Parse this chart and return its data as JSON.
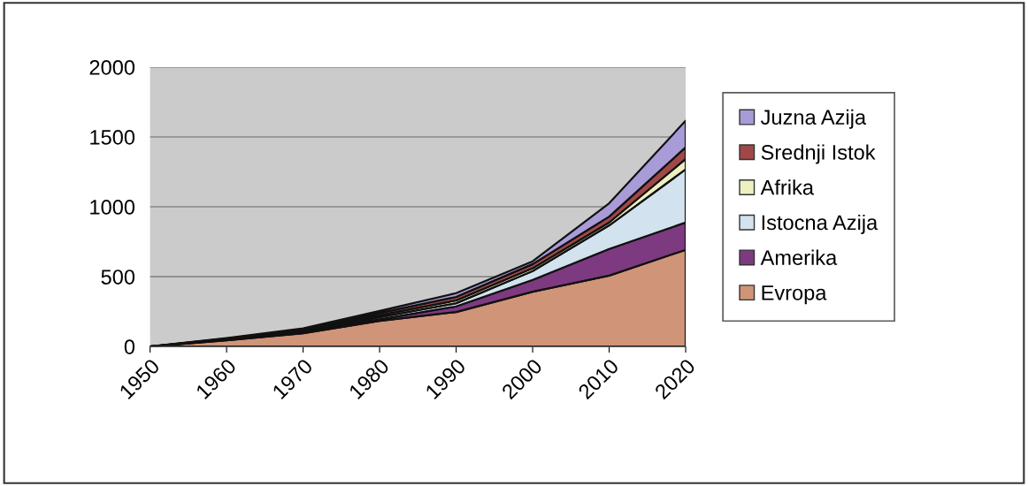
{
  "chart_data": {
    "type": "area",
    "stacked": true,
    "x": [
      1950,
      1960,
      1970,
      1980,
      1990,
      2000,
      2010,
      2020
    ],
    "series": [
      {
        "name": "Evropa",
        "color": "#d09478",
        "values": [
          0,
          45,
          95,
          184,
          247,
          392,
          508,
          692
        ]
      },
      {
        "name": "Amerika",
        "color": "#7e3a80",
        "values": [
          0,
          3,
          5,
          11,
          40,
          85,
          190,
          196
        ]
      },
      {
        "name": "Istocna Azija",
        "color": "#d2e2ee",
        "values": [
          0,
          3,
          8,
          15,
          23,
          63,
          169,
          380
        ]
      },
      {
        "name": "Afrika",
        "color": "#eef0c2",
        "values": [
          0,
          3,
          7,
          15,
          20,
          20,
          21,
          74
        ]
      },
      {
        "name": "Srednji Istok",
        "color": "#a04848",
        "values": [
          0,
          3,
          7,
          15,
          25,
          30,
          42,
          84
        ]
      },
      {
        "name": "Juzna Azija",
        "color": "#a99ad8",
        "values": [
          0,
          3,
          8,
          15,
          27,
          20,
          95,
          190
        ]
      }
    ],
    "xlim": [
      1950,
      2020
    ],
    "xticks": [
      1950,
      1960,
      1970,
      1980,
      1990,
      2000,
      2010,
      2020
    ],
    "ylim": [
      0,
      2000
    ],
    "yticks": [
      0,
      500,
      1000,
      1500,
      2000
    ],
    "grid": "y",
    "legend": "right"
  }
}
